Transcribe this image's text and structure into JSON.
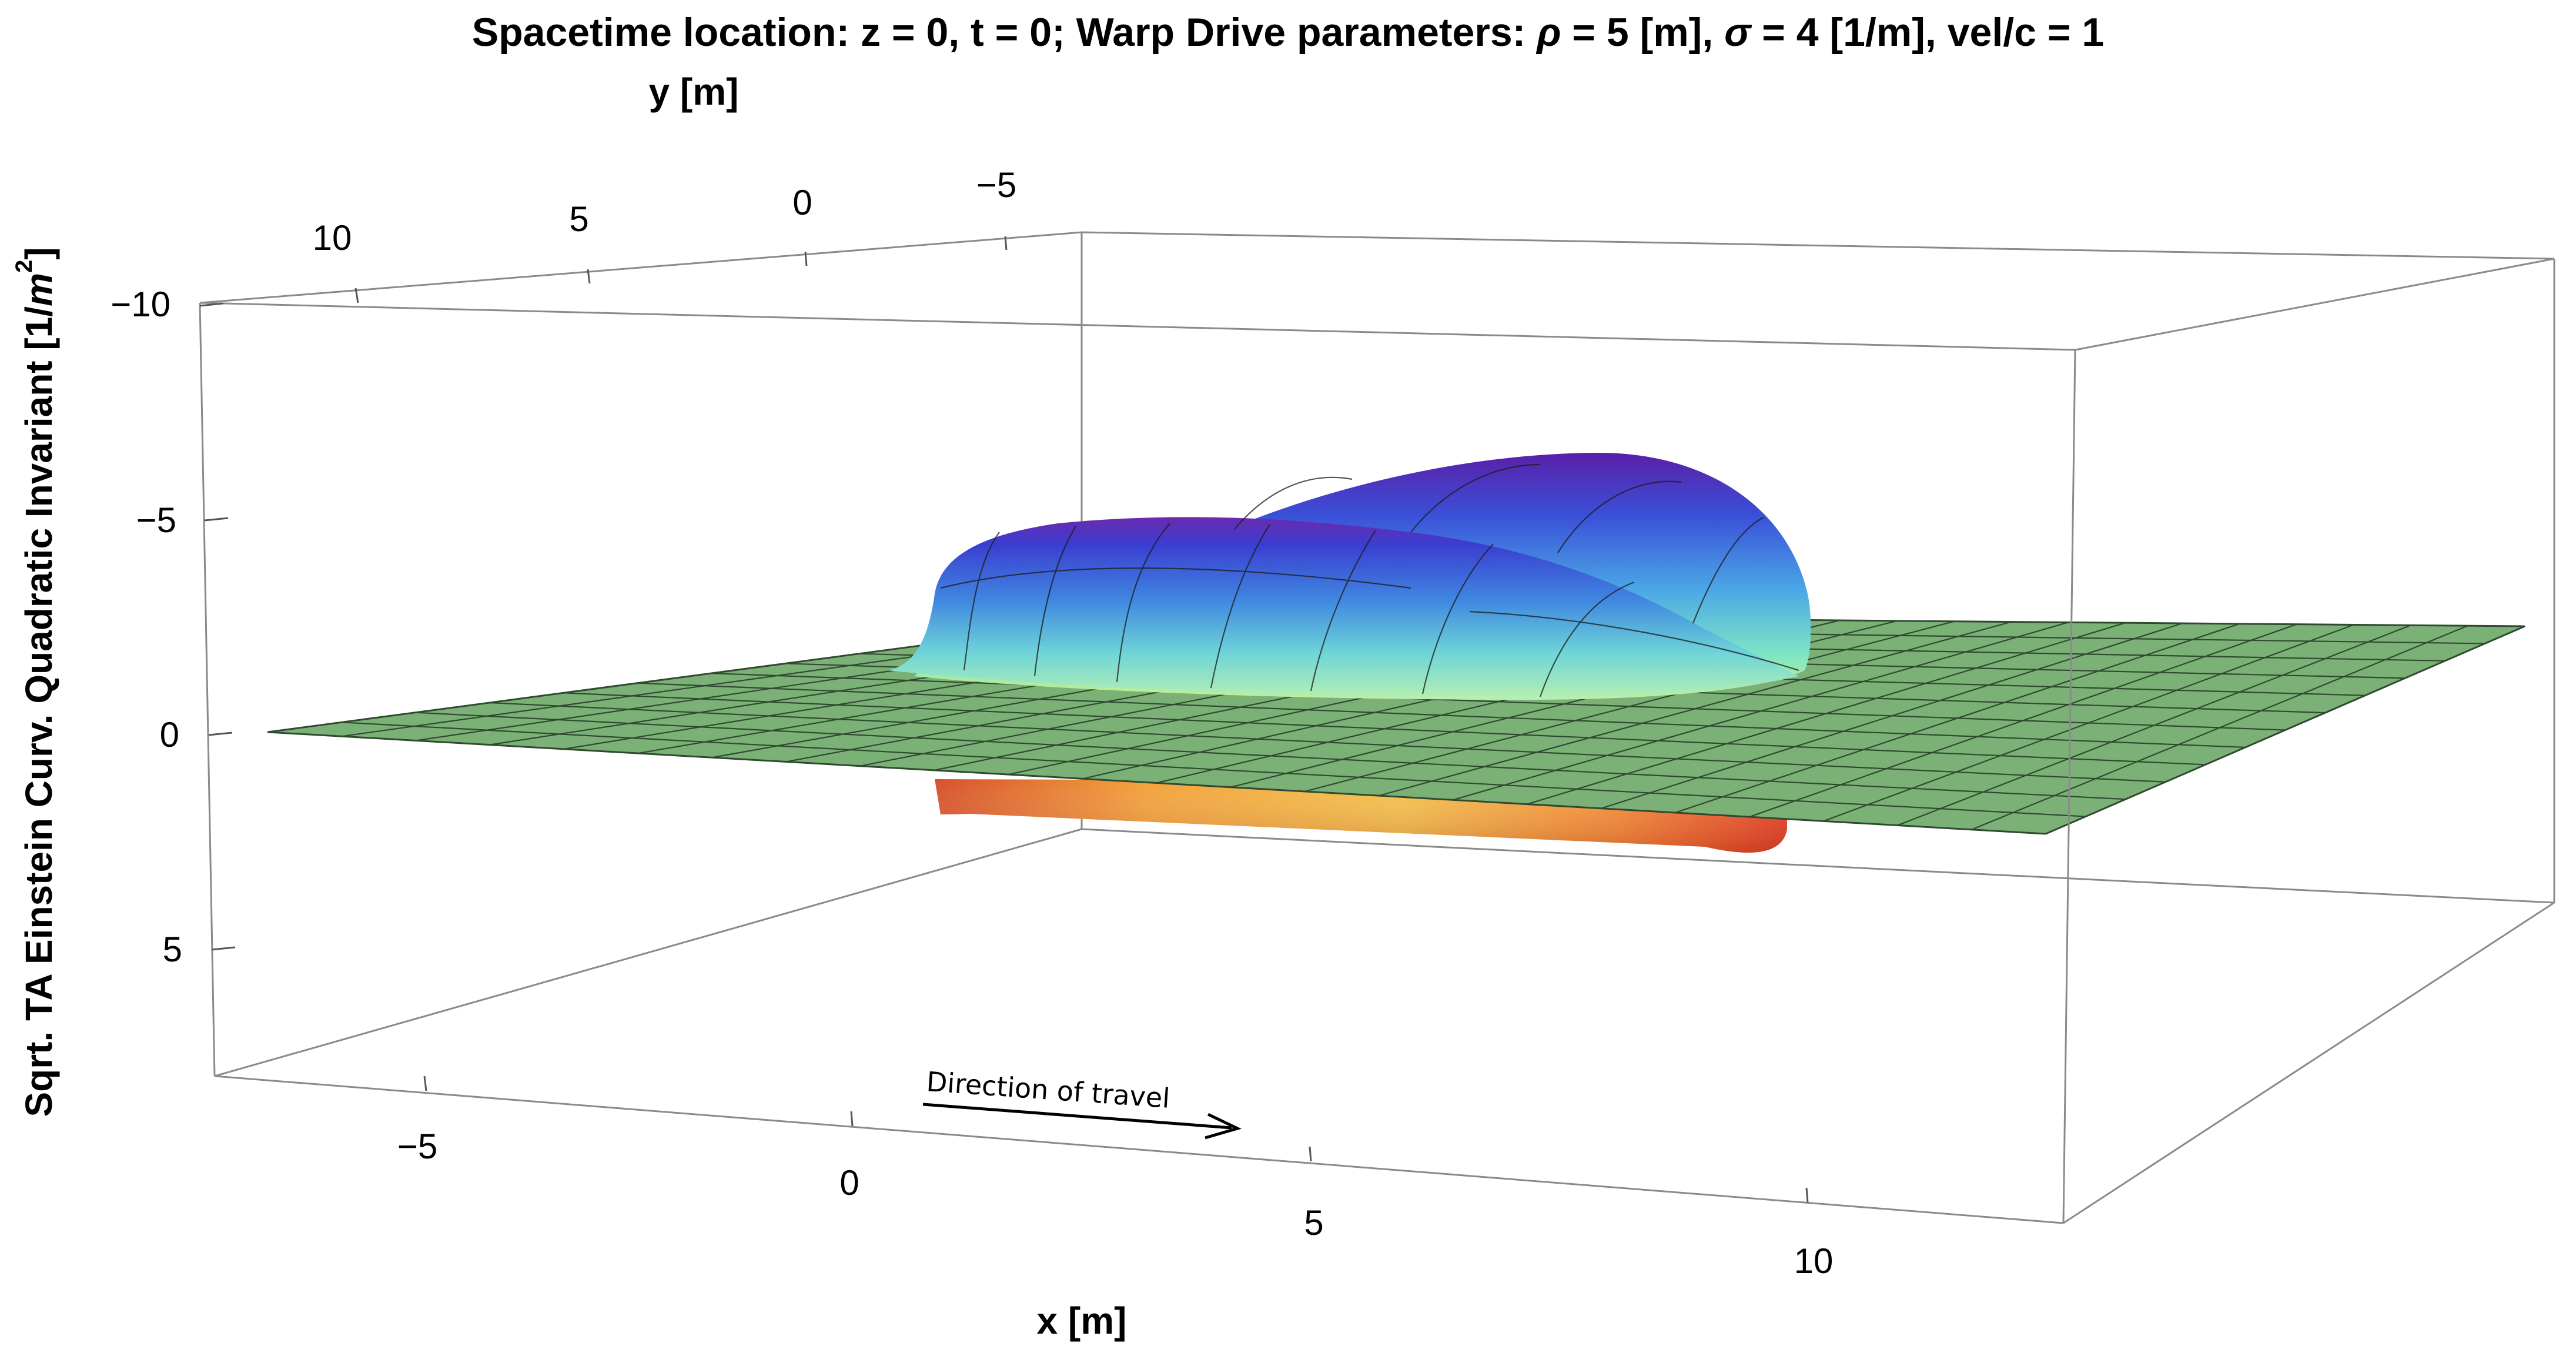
{
  "chart_data": {
    "type": "surface3d",
    "title": "Spacetime location:  z = 0, t = 0;   Warp Drive parameters: ρ = 5 [m], σ = 4 [1/m], vel/c = 1",
    "title_parts": {
      "prefix": "Spacetime location:  z = 0, t = 0;   Warp Drive parameters: ",
      "rho_sym": "ρ",
      "rho_val": " = 5 [m], ",
      "sigma_sym": "σ",
      "sigma_val": " = 4 [1/m], vel/c = 1"
    },
    "xlabel": "x [m]",
    "ylabel": "y [m]",
    "zlabel_prefix": "Sqrt. TA Einstein Curv. Quadratic Invariant [1/",
    "zlabel_m": "m",
    "zlabel_exp": "2",
    "zlabel_suffix": "]",
    "x_ticks": [
      "−5",
      "0",
      "5",
      "10"
    ],
    "y_ticks": [
      "10",
      "5",
      "0",
      "−5"
    ],
    "z_ticks": [
      "−10",
      "−5",
      "0",
      "5"
    ],
    "xlim": [
      -7,
      12
    ],
    "ylim": [
      -7,
      12
    ],
    "zlim": [
      -10,
      8
    ],
    "z_axis_reversed": true,
    "parameters": {
      "z": 0,
      "t": 0,
      "rho": 5,
      "sigma": 4,
      "vel_over_c": 1
    },
    "surfaces": [
      {
        "region": "sqrt_positive_lobes",
        "colormap": "rainbow",
        "peak_value": -5.8,
        "shape": "double ridge arc around bubble wall"
      },
      {
        "region": "sqrt_negative_lobe",
        "colormap": "warm",
        "peak_value": 1.6
      },
      {
        "region": "plane_zero",
        "color": "#7bb077",
        "value": 0
      }
    ],
    "annotations": [
      {
        "text": "Direction of travel",
        "arrow": "toward +x"
      }
    ],
    "grid": true,
    "box": true
  }
}
